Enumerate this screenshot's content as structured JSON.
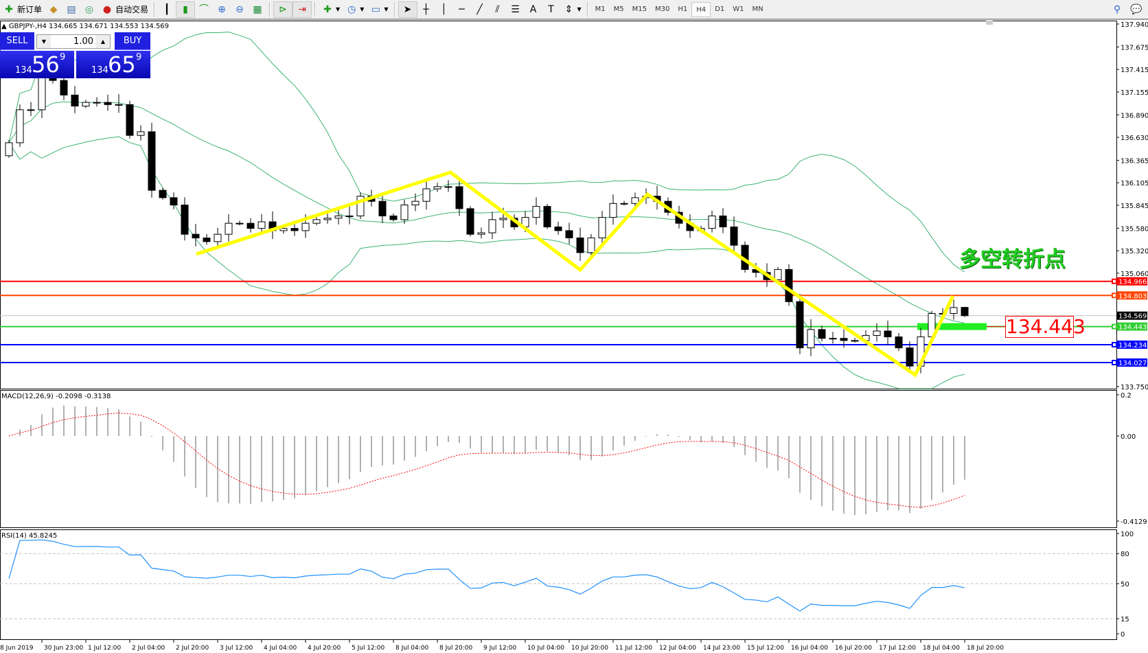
{
  "toolbar": {
    "new_order": "新订单",
    "auto_trading": "自动交易",
    "timeframes": [
      "M1",
      "M5",
      "M15",
      "M30",
      "H1",
      "H4",
      "D1",
      "W1",
      "MN"
    ],
    "active_timeframe": "H4"
  },
  "header": {
    "symbol": "GBPJPY-,H4",
    "ohlc": "134.665 134.671 134.553 134.569"
  },
  "trade_panel": {
    "sell_label": "SELL",
    "buy_label": "BUY",
    "lot": "1.00",
    "sell_prefix": "134",
    "sell_big": "56",
    "sell_sup": "9",
    "buy_prefix": "134",
    "buy_big": "65",
    "buy_sup": "9",
    "sell_color": "#2020e0"
  },
  "annotations": {
    "title": "多空转折点",
    "price_box": "134.443",
    "zigzag_color": "#ffff00"
  },
  "chart_data": {
    "type": "candlestick",
    "symbol": "GBPJPY",
    "timeframe": "H4",
    "close": [
      136.568,
      136.949,
      136.949,
      137.373,
      137.288,
      137.119,
      136.992,
      137.034,
      137.034,
      137.009,
      137.009,
      136.653,
      136.695,
      136.018,
      135.933,
      135.848,
      135.51,
      135.467,
      135.425,
      135.51,
      135.637,
      135.637,
      135.578,
      135.654,
      135.552,
      135.578,
      135.552,
      135.637,
      135.679,
      135.696,
      135.722,
      135.722,
      135.95,
      135.891,
      135.722,
      135.679,
      135.849,
      135.891,
      136.035,
      136.06,
      136.06,
      135.806,
      135.51,
      135.527,
      135.679,
      135.696,
      135.595,
      135.705,
      135.832,
      135.595,
      135.552,
      135.468,
      135.298,
      135.468,
      135.705,
      135.866,
      135.866,
      135.933,
      135.95,
      135.891,
      135.764,
      135.637,
      135.552,
      135.578,
      135.722,
      135.595,
      135.383,
      135.103,
      135.069,
      134.985,
      135.103,
      134.731,
      134.197,
      134.409,
      134.307,
      134.307,
      134.282,
      134.282,
      134.341,
      134.392,
      134.324,
      134.197,
      133.986,
      134.324,
      134.595,
      134.595,
      134.663,
      134.569
    ],
    "last_bar": {
      "open": 134.665,
      "high": 134.671,
      "low": 134.553,
      "close": 134.569
    },
    "bid_line": {
      "price": 134.569,
      "label": "134.569",
      "color": "#c0c0c0"
    },
    "levels": [
      {
        "price": 134.966,
        "label": "134.966",
        "color": "#ff0000"
      },
      {
        "price": 134.803,
        "label": "134.803",
        "color": "#ff4500"
      },
      {
        "price": 134.443,
        "label": "134.443",
        "color": "#32cd32"
      },
      {
        "price": 134.234,
        "label": "134.234",
        "color": "#0000ff"
      },
      {
        "price": 134.027,
        "label": "134.027",
        "color": "#0000ff"
      }
    ],
    "price_axis": {
      "ticks": [
        "137.940",
        "137.675",
        "137.415",
        "137.155",
        "136.890",
        "136.630",
        "136.365",
        "136.105",
        "135.845",
        "135.580",
        "135.320",
        "135.060",
        "133.750"
      ],
      "range": [
        133.75,
        137.94
      ]
    },
    "time_axis": {
      "labels": [
        "8 Jun 2019",
        "30 Jun 23:00",
        "1 Jul 12:00",
        "2 Jul 04:00",
        "2 Jul 20:00",
        "3 Jul 12:00",
        "4 Jul 04:00",
        "4 Jul 20:00",
        "5 Jul 12:00",
        "8 Jul 04:00",
        "8 Jul 20:00",
        "9 Jul 12:00",
        "10 Jul 04:00",
        "10 Jul 20:00",
        "11 Jul 12:00",
        "12 Jul 04:00",
        "14 Jul 23:00",
        "15 Jul 12:00",
        "16 Jul 04:00",
        "16 Jul 20:00",
        "17 Jul 12:00",
        "18 Jul 04:00",
        "18 Jul 20:00"
      ]
    },
    "bollinger_color": "#3cb371",
    "macd": {
      "label": "MACD(12,26,9) -0.2098 -0.3138",
      "ticks": [
        "0.2",
        "0.00",
        "-0.4129"
      ],
      "range": [
        -0.4129,
        0.2
      ],
      "main": -0.2098,
      "signal": -0.3138
    },
    "rsi": {
      "label": "RSI(14) 45.8245",
      "value": 45.8245,
      "ticks": [
        "100",
        "80",
        "50",
        "15",
        "0"
      ],
      "levels": [
        80,
        50,
        15
      ],
      "color": "#1e90ff"
    }
  }
}
